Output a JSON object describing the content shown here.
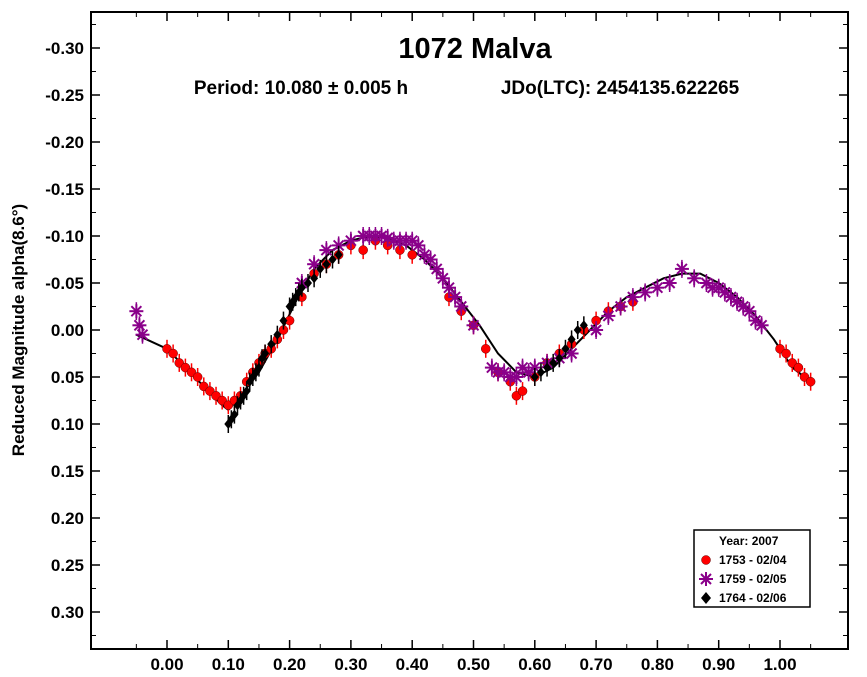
{
  "chart_data": {
    "type": "scatter",
    "title": "1072 Malva",
    "subtitle_period": "Period: 10.080 ± 0.005 h",
    "subtitle_epoch": "JDo(LTC): 2454135.622265",
    "ylabel": "Reduced Magnitude alpha(8.6°)",
    "xlabel": "",
    "xlim": [
      -0.07,
      1.08
    ],
    "ylim": [
      0.335,
      -0.335
    ],
    "y_inverted": true,
    "x_ticks": [
      0.0,
      0.1,
      0.2,
      0.3,
      0.4,
      0.5,
      0.6,
      0.7,
      0.8,
      0.9,
      1.0
    ],
    "x_tick_labels": [
      "0.00",
      "0.10",
      "0.20",
      "0.30",
      "0.40",
      "0.50",
      "0.60",
      "0.70",
      "0.80",
      "0.90",
      "1.00"
    ],
    "y_ticks": [
      -0.3,
      -0.25,
      -0.2,
      -0.15,
      -0.1,
      -0.05,
      0.0,
      0.05,
      0.1,
      0.15,
      0.2,
      0.25,
      0.3
    ],
    "y_tick_labels": [
      "-0.30",
      "-0.25",
      "-0.20",
      "-0.15",
      "-0.10",
      "-0.05",
      "0.00",
      "0.05",
      "0.10",
      "0.15",
      "0.20",
      "0.25",
      "0.30"
    ],
    "grid": false,
    "legend": {
      "title": "Year: 2007",
      "position": "bottom-right",
      "entries": [
        "1753 - 02/04",
        "1759 - 02/05",
        "1764 - 02/06"
      ]
    },
    "fit_curve": {
      "x": [
        -0.05,
        0.0,
        0.03,
        0.06,
        0.09,
        0.1,
        0.12,
        0.15,
        0.18,
        0.21,
        0.24,
        0.27,
        0.3,
        0.33,
        0.36,
        0.39,
        0.42,
        0.45,
        0.48,
        0.51,
        0.54,
        0.57,
        0.6,
        0.63,
        0.66,
        0.69,
        0.72,
        0.75,
        0.78,
        0.81,
        0.84,
        0.87,
        0.9,
        0.93,
        0.96,
        0.99,
        1.02,
        1.05
      ],
      "y": [
        0.005,
        0.02,
        0.04,
        0.06,
        0.08,
        0.085,
        0.07,
        0.045,
        0.01,
        -0.03,
        -0.065,
        -0.085,
        -0.095,
        -0.1,
        -0.098,
        -0.09,
        -0.075,
        -0.055,
        -0.03,
        -0.005,
        0.025,
        0.045,
        0.05,
        0.04,
        0.02,
        0.0,
        -0.02,
        -0.035,
        -0.045,
        -0.055,
        -0.06,
        -0.06,
        -0.05,
        -0.035,
        -0.015,
        0.01,
        0.04,
        0.055
      ]
    },
    "series": [
      {
        "name": "1753 - 02/04",
        "color": "#ff0000",
        "marker": "circle",
        "x": [
          0.0,
          0.01,
          0.02,
          0.03,
          0.04,
          0.05,
          0.06,
          0.07,
          0.08,
          0.09,
          0.1,
          0.11,
          0.12,
          0.13,
          0.14,
          0.15,
          0.16,
          0.17,
          0.18,
          0.19,
          0.2,
          0.22,
          0.24,
          0.26,
          0.28,
          0.3,
          0.32,
          0.34,
          0.36,
          0.38,
          0.4,
          0.46,
          0.48,
          0.5,
          0.52,
          0.54,
          0.56,
          0.57,
          0.58,
          0.6,
          0.62,
          0.64,
          0.66,
          0.68,
          0.7,
          0.72,
          0.74,
          0.76,
          1.0,
          1.01,
          1.02,
          1.03,
          1.04,
          1.05
        ],
        "y": [
          0.02,
          0.025,
          0.035,
          0.04,
          0.045,
          0.05,
          0.06,
          0.065,
          0.07,
          0.075,
          0.08,
          0.075,
          0.07,
          0.055,
          0.045,
          0.035,
          0.025,
          0.02,
          0.01,
          0.0,
          -0.01,
          -0.035,
          -0.06,
          -0.07,
          -0.08,
          -0.09,
          -0.085,
          -0.095,
          -0.09,
          -0.085,
          -0.08,
          -0.035,
          -0.02,
          -0.005,
          0.02,
          0.045,
          0.055,
          0.07,
          0.065,
          0.05,
          0.035,
          0.025,
          0.015,
          0.0,
          -0.01,
          -0.02,
          -0.025,
          -0.03,
          0.02,
          0.025,
          0.035,
          0.04,
          0.05,
          0.055
        ]
      },
      {
        "name": "1759 - 02/05",
        "color": "#8a008a",
        "marker": "asterisk",
        "x": [
          -0.05,
          -0.045,
          -0.04,
          0.22,
          0.24,
          0.26,
          0.28,
          0.3,
          0.32,
          0.33,
          0.34,
          0.35,
          0.36,
          0.37,
          0.38,
          0.39,
          0.4,
          0.41,
          0.42,
          0.43,
          0.44,
          0.45,
          0.46,
          0.47,
          0.48,
          0.5,
          0.53,
          0.54,
          0.55,
          0.56,
          0.57,
          0.58,
          0.59,
          0.6,
          0.62,
          0.64,
          0.66,
          0.7,
          0.72,
          0.74,
          0.76,
          0.78,
          0.8,
          0.82,
          0.84,
          0.86,
          0.88,
          0.89,
          0.9,
          0.91,
          0.92,
          0.93,
          0.94,
          0.95,
          0.96,
          0.97
        ],
        "y": [
          -0.02,
          -0.005,
          0.005,
          -0.05,
          -0.07,
          -0.085,
          -0.09,
          -0.095,
          -0.1,
          -0.1,
          -0.1,
          -0.1,
          -0.098,
          -0.095,
          -0.095,
          -0.095,
          -0.095,
          -0.09,
          -0.08,
          -0.075,
          -0.065,
          -0.055,
          -0.045,
          -0.035,
          -0.025,
          -0.005,
          0.04,
          0.045,
          0.045,
          0.05,
          0.05,
          0.04,
          0.045,
          0.04,
          0.035,
          0.03,
          0.025,
          0.0,
          -0.015,
          -0.025,
          -0.035,
          -0.04,
          -0.045,
          -0.05,
          -0.065,
          -0.055,
          -0.05,
          -0.045,
          -0.045,
          -0.04,
          -0.035,
          -0.03,
          -0.025,
          -0.02,
          -0.01,
          -0.005
        ]
      },
      {
        "name": "1764 - 02/06",
        "color": "#000000",
        "marker": "diamond",
        "x": [
          0.1,
          0.105,
          0.11,
          0.115,
          0.12,
          0.125,
          0.13,
          0.135,
          0.14,
          0.145,
          0.15,
          0.155,
          0.16,
          0.17,
          0.18,
          0.19,
          0.2,
          0.205,
          0.21,
          0.215,
          0.22,
          0.23,
          0.24,
          0.25,
          0.26,
          0.27,
          0.28,
          0.6,
          0.61,
          0.62,
          0.63,
          0.64,
          0.65,
          0.66,
          0.67,
          0.68
        ],
        "y": [
          0.1,
          0.095,
          0.09,
          0.08,
          0.075,
          0.07,
          0.065,
          0.055,
          0.05,
          0.045,
          0.04,
          0.03,
          0.025,
          0.015,
          0.005,
          -0.01,
          -0.025,
          -0.03,
          -0.035,
          -0.04,
          -0.045,
          -0.05,
          -0.055,
          -0.065,
          -0.07,
          -0.075,
          -0.08,
          0.05,
          0.045,
          0.04,
          0.035,
          0.03,
          0.02,
          0.01,
          0.0,
          -0.005
        ]
      }
    ]
  }
}
